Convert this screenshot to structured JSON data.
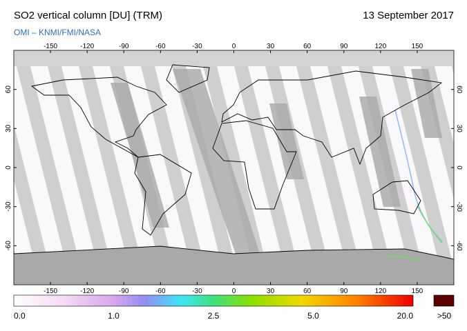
{
  "header": {
    "title": "SO2 vertical column [DU] (TRM)",
    "date": "13 September 2017",
    "source": "OMI  –  KNMI/FMI/NASA"
  },
  "map": {
    "xlim": [
      -180,
      180
    ],
    "ylim": [
      -90,
      90
    ],
    "lon_ticks": [
      -150,
      -120,
      -90,
      -60,
      -30,
      0,
      30,
      60,
      90,
      120,
      150
    ],
    "lat_ticks": [
      60,
      30,
      0,
      -30,
      -60
    ]
  },
  "colorbar": {
    "labels": [
      "0.0",
      "1.0",
      "2.5",
      "5.0",
      "20.0"
    ],
    "overflow_label": ">50"
  }
}
